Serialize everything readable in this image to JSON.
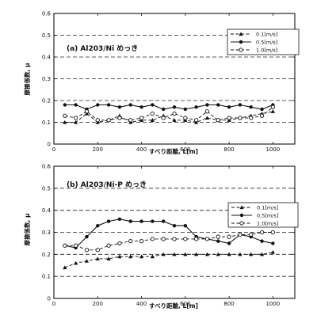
{
  "chart_data": [
    {
      "type": "line",
      "title": "(a)  Al203/Ni めっき",
      "xlabel": "すべり距離, L[m]",
      "ylabel": "摩擦係数, μ",
      "xlim": [
        0,
        1100
      ],
      "ylim": [
        0,
        0.6
      ],
      "x_ticks": [
        "0",
        "200",
        "400",
        "600",
        "800",
        "1000"
      ],
      "y_ticks": [
        "0",
        "0.1",
        "0.2",
        "0.3",
        "0.4",
        "0.5",
        "0.6"
      ],
      "grid": "dashed-horizontal",
      "legend_position": "top-right",
      "series": [
        {
          "name": "0.1[m/s]",
          "marker": "triangle",
          "line": "dashed",
          "x": [
            50,
            100,
            150,
            200,
            250,
            300,
            350,
            400,
            450,
            500,
            550,
            600,
            650,
            700,
            750,
            800,
            850,
            900,
            950,
            1000
          ],
          "y": [
            0.1,
            0.1,
            0.14,
            0.1,
            0.11,
            0.13,
            0.1,
            0.11,
            0.11,
            0.13,
            0.11,
            0.11,
            0.1,
            0.12,
            0.11,
            0.11,
            0.12,
            0.13,
            0.14,
            0.15
          ]
        },
        {
          "name": "0.5[m/s]",
          "marker": "filled-circle",
          "line": "solid",
          "x": [
            50,
            100,
            150,
            200,
            250,
            300,
            350,
            400,
            450,
            500,
            550,
            600,
            650,
            700,
            750,
            800,
            850,
            900,
            950,
            1000
          ],
          "y": [
            0.18,
            0.18,
            0.16,
            0.18,
            0.18,
            0.17,
            0.18,
            0.17,
            0.18,
            0.16,
            0.17,
            0.16,
            0.17,
            0.18,
            0.18,
            0.17,
            0.18,
            0.17,
            0.16,
            0.18
          ]
        },
        {
          "name": "1.0[m/s]",
          "marker": "open-circle",
          "line": "dashed",
          "x": [
            50,
            100,
            150,
            200,
            250,
            300,
            350,
            400,
            450,
            500,
            550,
            600,
            650,
            700,
            750,
            800,
            850,
            900,
            950,
            1000
          ],
          "y": [
            0.13,
            0.12,
            0.15,
            0.11,
            0.11,
            0.12,
            0.11,
            0.12,
            0.14,
            0.12,
            0.14,
            0.12,
            0.11,
            0.15,
            0.11,
            0.12,
            0.12,
            0.12,
            0.13,
            0.17
          ]
        }
      ]
    },
    {
      "type": "line",
      "title": "(b)  Al203/Ni-P めっき",
      "xlabel": "すべり距離, L[m]",
      "ylabel": "摩擦係数, μ",
      "xlim": [
        0,
        1100
      ],
      "ylim": [
        0,
        0.6
      ],
      "x_ticks": [
        "0",
        "200",
        "400",
        "600",
        "800",
        "1000"
      ],
      "y_ticks": [
        "0",
        "0.1",
        "0.2",
        "0.3",
        "0.4",
        "0.5",
        "0.6"
      ],
      "grid": "dashed-horizontal",
      "legend_position": "right",
      "series": [
        {
          "name": "0.1[m/s]",
          "marker": "triangle",
          "line": "dashed",
          "x": [
            50,
            100,
            150,
            200,
            250,
            300,
            350,
            400,
            450,
            500,
            550,
            600,
            650,
            700,
            750,
            800,
            850,
            900,
            950,
            1000
          ],
          "y": [
            0.14,
            0.16,
            0.17,
            0.18,
            0.18,
            0.19,
            0.19,
            0.19,
            0.19,
            0.2,
            0.2,
            0.2,
            0.2,
            0.2,
            0.2,
            0.2,
            0.2,
            0.2,
            0.2,
            0.21
          ]
        },
        {
          "name": "0.5[m/s]",
          "marker": "filled-circle",
          "line": "solid",
          "x": [
            50,
            100,
            150,
            200,
            250,
            300,
            350,
            400,
            450,
            500,
            550,
            600,
            650,
            700,
            750,
            800,
            850,
            900,
            950,
            1000
          ],
          "y": [
            0.24,
            0.23,
            0.28,
            0.33,
            0.35,
            0.36,
            0.35,
            0.35,
            0.35,
            0.35,
            0.33,
            0.33,
            0.28,
            0.27,
            0.26,
            0.25,
            0.29,
            0.28,
            0.26,
            0.25
          ]
        },
        {
          "name": "1.0[m/s]",
          "marker": "open-circle",
          "line": "dashed",
          "x": [
            50,
            100,
            150,
            200,
            250,
            300,
            350,
            400,
            450,
            500,
            550,
            600,
            650,
            700,
            750,
            800,
            850,
            900,
            950,
            1000
          ],
          "y": [
            0.24,
            0.24,
            0.22,
            0.22,
            0.24,
            0.25,
            0.26,
            0.26,
            0.27,
            0.27,
            0.27,
            0.27,
            0.27,
            0.27,
            0.28,
            0.28,
            0.29,
            0.29,
            0.3,
            0.3
          ]
        }
      ]
    }
  ]
}
